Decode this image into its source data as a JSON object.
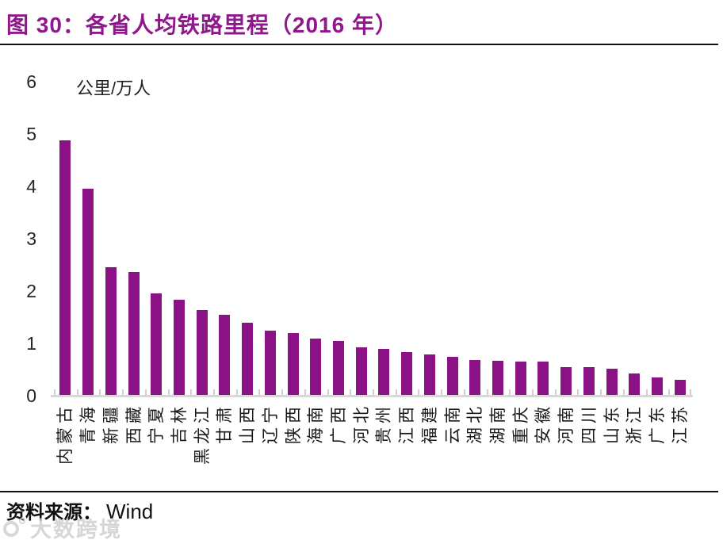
{
  "header": {
    "title": "图 30：各省人均铁路里程（2016 年）",
    "title_color": "#8E188C"
  },
  "chart_data": {
    "type": "bar",
    "title": "各省人均铁路里程（2016 年）",
    "unit_label": "公里/万人",
    "categories": [
      "内蒙古",
      "青海",
      "新疆",
      "西藏",
      "宁夏",
      "吉林",
      "黑龙江",
      "甘肃",
      "山西",
      "辽宁",
      "陕西",
      "海南",
      "广西",
      "河北",
      "贵州",
      "江西",
      "福建",
      "云南",
      "湖北",
      "湖南",
      "重庆",
      "安徽",
      "河南",
      "四川",
      "山东",
      "浙江",
      "广东",
      "江苏"
    ],
    "values": [
      4.88,
      3.95,
      2.45,
      2.36,
      1.95,
      1.83,
      1.63,
      1.55,
      1.4,
      1.24,
      1.2,
      1.09,
      1.05,
      0.92,
      0.9,
      0.83,
      0.79,
      0.74,
      0.68,
      0.66,
      0.65,
      0.65,
      0.55,
      0.54,
      0.51,
      0.42,
      0.35,
      0.31
    ],
    "ylim": [
      0,
      6
    ],
    "yticks": [
      0,
      1,
      2,
      3,
      4,
      5,
      6
    ],
    "grid": false,
    "legend": "none",
    "bar_color": "#8C1287",
    "axis_color": "#D8D8D8"
  },
  "footer": {
    "source_label": "资料来源：",
    "source_value": "Wind"
  },
  "watermark": {
    "icon": "dashukuajing-logo",
    "text": "大数跨境"
  }
}
